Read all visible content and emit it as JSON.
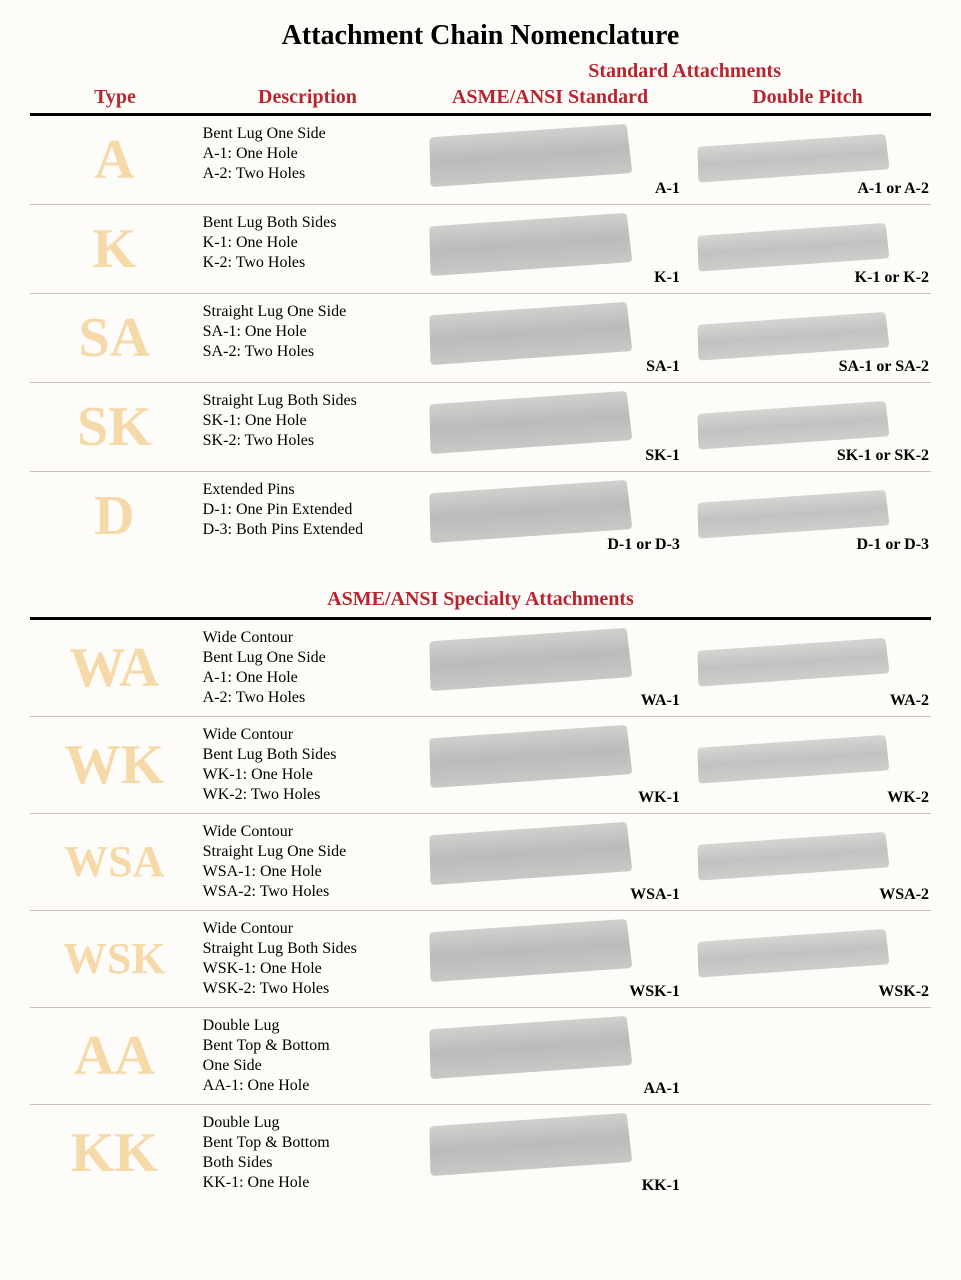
{
  "title": "Attachment Chain Nomenclature",
  "colors": {
    "header_red": "#b8252f",
    "type_letter": "#f5d9a8",
    "background": "#fdfcf8",
    "row_divider": "#c9c2b5",
    "rule": "#000000"
  },
  "headers": {
    "super": "Standard Attachments",
    "type": "Type",
    "description": "Description",
    "std": "ASME/ANSI Standard",
    "dp": "Double Pitch"
  },
  "section1": {
    "rows": [
      {
        "type": "A",
        "desc": [
          "Bent Lug One Side",
          "A-1: One Hole",
          "A-2: Two Holes"
        ],
        "std_caption": "A-1",
        "dp_caption": "A-1 or A-2"
      },
      {
        "type": "K",
        "desc": [
          "Bent Lug Both Sides",
          "K-1: One Hole",
          "K-2: Two Holes"
        ],
        "std_caption": "K-1",
        "dp_caption": "K-1 or K-2"
      },
      {
        "type": "SA",
        "desc": [
          "Straight Lug One Side",
          "SA-1: One Hole",
          "SA-2: Two Holes"
        ],
        "std_caption": "SA-1",
        "dp_caption": "SA-1 or SA-2"
      },
      {
        "type": "SK",
        "desc": [
          "Straight Lug Both Sides",
          "SK-1: One Hole",
          "SK-2: Two Holes"
        ],
        "std_caption": "SK-1",
        "dp_caption": "SK-1 or SK-2"
      },
      {
        "type": "D",
        "desc": [
          "Extended Pins",
          "D-1: One Pin Extended",
          "D-3: Both Pins Extended"
        ],
        "std_caption": "D-1 or D-3",
        "dp_caption": "D-1 or D-3"
      }
    ]
  },
  "section2_title": "ASME/ANSI Specialty Attachments",
  "section2": {
    "rows": [
      {
        "type": "WA",
        "desc": [
          "Wide Contour",
          "Bent Lug One Side",
          "A-1: One Hole",
          "A-2: Two Holes"
        ],
        "std_caption": "WA-1",
        "dp_caption": "WA-2"
      },
      {
        "type": "WK",
        "desc": [
          "Wide Contour",
          "Bent Lug Both Sides",
          "WK-1: One Hole",
          "WK-2: Two Holes"
        ],
        "std_caption": "WK-1",
        "dp_caption": "WK-2"
      },
      {
        "type": "WSA",
        "desc": [
          "Wide Contour",
          "Straight Lug One Side",
          "WSA-1: One Hole",
          "WSA-2: Two Holes"
        ],
        "std_caption": "WSA-1",
        "dp_caption": "WSA-2"
      },
      {
        "type": "WSK",
        "desc": [
          "Wide Contour",
          "Straight Lug Both Sides",
          "WSK-1: One Hole",
          "WSK-2: Two Holes"
        ],
        "std_caption": "WSK-1",
        "dp_caption": "WSK-2"
      },
      {
        "type": "AA",
        "desc": [
          "Double Lug",
          "Bent Top & Bottom",
          "One Side",
          "AA-1: One Hole"
        ],
        "std_caption": "AA-1",
        "dp_caption": ""
      },
      {
        "type": "KK",
        "desc": [
          "Double Lug",
          "Bent Top & Bottom",
          "Both Sides",
          "KK-1: One Hole"
        ],
        "std_caption": "KK-1",
        "dp_caption": ""
      }
    ]
  }
}
